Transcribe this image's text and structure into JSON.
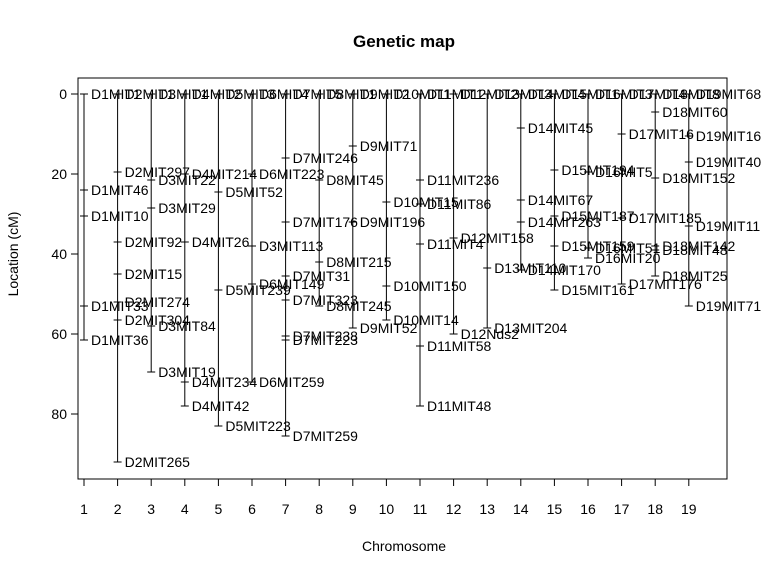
{
  "chart_data": {
    "type": "genetic-map",
    "title": "Genetic map",
    "xlabel": "Chromosome",
    "ylabel": "Location (cM)",
    "ylim": [
      0,
      95
    ],
    "yticks": [
      0,
      20,
      40,
      60,
      80
    ],
    "reversed_y": true,
    "chromosomes": [
      {
        "name": "1",
        "length": 61.5,
        "markers": [
          {
            "name": "D1MIT1",
            "pos": 0
          },
          {
            "name": "D1MIT46",
            "pos": 24
          },
          {
            "name": "D1MIT10",
            "pos": 30.5
          },
          {
            "name": "D1MIT33",
            "pos": 53
          },
          {
            "name": "D1MIT36",
            "pos": 61.5
          }
        ]
      },
      {
        "name": "2",
        "length": 92,
        "markers": [
          {
            "name": "D2MIT1",
            "pos": 0
          },
          {
            "name": "D2MIT297",
            "pos": 19.5
          },
          {
            "name": "D2MIT92",
            "pos": 37
          },
          {
            "name": "D2MIT15",
            "pos": 45
          },
          {
            "name": "D2MIT274",
            "pos": 52
          },
          {
            "name": "D2MIT304",
            "pos": 56.5
          },
          {
            "name": "D2MIT265",
            "pos": 92
          }
        ]
      },
      {
        "name": "3",
        "length": 69.5,
        "markers": [
          {
            "name": "D3MIT1",
            "pos": 0
          },
          {
            "name": "D3MIT22",
            "pos": 21.5
          },
          {
            "name": "D3MIT29",
            "pos": 28.5
          },
          {
            "name": "D3MIT84",
            "pos": 58
          },
          {
            "name": "D3MIT19",
            "pos": 69.5
          }
        ]
      },
      {
        "name": "4",
        "length": 78,
        "markers": [
          {
            "name": "D4MIT2",
            "pos": 0
          },
          {
            "name": "D4MIT214",
            "pos": 20
          },
          {
            "name": "D4MIT26",
            "pos": 37
          },
          {
            "name": "D4MIT234",
            "pos": 72
          },
          {
            "name": "D4MIT42",
            "pos": 78
          }
        ]
      },
      {
        "name": "5",
        "length": 83,
        "markers": [
          {
            "name": "D5MIT3",
            "pos": 0
          },
          {
            "name": "D5MIT52",
            "pos": 24.5
          },
          {
            "name": "D5MIT239",
            "pos": 49
          },
          {
            "name": "D5MIT223",
            "pos": 83
          }
        ]
      },
      {
        "name": "6",
        "length": 72,
        "markers": [
          {
            "name": "D6MIT4",
            "pos": 0
          },
          {
            "name": "D6MIT223",
            "pos": 20
          },
          {
            "name": "D3MIT113",
            "pos": 38
          },
          {
            "name": "D6MIT149",
            "pos": 47.5
          },
          {
            "name": "D6MIT259",
            "pos": 72
          }
        ]
      },
      {
        "name": "7",
        "length": 85.5,
        "markers": [
          {
            "name": "D7MIT5",
            "pos": 0
          },
          {
            "name": "D7MIT246",
            "pos": 16
          },
          {
            "name": "D7MIT176",
            "pos": 32
          },
          {
            "name": "D7MIT31",
            "pos": 45.5
          },
          {
            "name": "D7MIT323",
            "pos": 51.5
          },
          {
            "name": "D7MIT238",
            "pos": 60.5
          },
          {
            "name": "D7MIT223",
            "pos": 61.5
          },
          {
            "name": "D7MIT259",
            "pos": 85.5
          }
        ]
      },
      {
        "name": "8",
        "length": 53,
        "markers": [
          {
            "name": "D8MIT1",
            "pos": 0
          },
          {
            "name": "D8MIT45",
            "pos": 21.5
          },
          {
            "name": "D8MIT215",
            "pos": 42
          },
          {
            "name": "D8MIT245",
            "pos": 53
          }
        ]
      },
      {
        "name": "9",
        "length": 58.5,
        "markers": [
          {
            "name": "D9MIT2",
            "pos": 0
          },
          {
            "name": "D9MIT71",
            "pos": 13
          },
          {
            "name": "D9MIT196",
            "pos": 32
          },
          {
            "name": "D9MIT52",
            "pos": 58.5
          }
        ]
      },
      {
        "name": "10",
        "length": 56.5,
        "markers": [
          {
            "name": "D10MIT1",
            "pos": 0
          },
          {
            "name": "D10MIT15",
            "pos": 27
          },
          {
            "name": "D10MIT150",
            "pos": 48
          },
          {
            "name": "D10MIT14",
            "pos": 56.5
          }
        ]
      },
      {
        "name": "11",
        "length": 78,
        "markers": [
          {
            "name": "D11MIT1",
            "pos": 0
          },
          {
            "name": "D11MIT236",
            "pos": 21.5
          },
          {
            "name": "D11MIT86",
            "pos": 27.5
          },
          {
            "name": "D11MIT4",
            "pos": 37.5
          },
          {
            "name": "D11MIT58",
            "pos": 63
          },
          {
            "name": "D11MIT48",
            "pos": 78
          }
        ]
      },
      {
        "name": "12",
        "length": 60,
        "markers": [
          {
            "name": "D12MIT2",
            "pos": 0
          },
          {
            "name": "D12MIT158",
            "pos": 36
          },
          {
            "name": "D12Nds2",
            "pos": 60
          }
        ]
      },
      {
        "name": "13",
        "length": 58.5,
        "markers": [
          {
            "name": "D13MIT3",
            "pos": 0
          },
          {
            "name": "D13MIT110",
            "pos": 43.5
          },
          {
            "name": "D13MIT204",
            "pos": 58.5
          }
        ]
      },
      {
        "name": "14",
        "length": 44,
        "markers": [
          {
            "name": "D14MIT4",
            "pos": 0
          },
          {
            "name": "D14MIT45",
            "pos": 8.5
          },
          {
            "name": "D14MIT67",
            "pos": 26.5
          },
          {
            "name": "D14MIT263",
            "pos": 32
          },
          {
            "name": "D14MIT170",
            "pos": 44
          }
        ]
      },
      {
        "name": "15",
        "length": 49,
        "markers": [
          {
            "name": "D15MIT1",
            "pos": 0
          },
          {
            "name": "D15MIT194",
            "pos": 19
          },
          {
            "name": "D15MIT187",
            "pos": 30.5
          },
          {
            "name": "D15MIT159",
            "pos": 38
          },
          {
            "name": "D15MIT161",
            "pos": 49
          }
        ]
      },
      {
        "name": "16",
        "length": 41,
        "markers": [
          {
            "name": "D16MIT3",
            "pos": 0
          },
          {
            "name": "D16MIT5",
            "pos": 19.5
          },
          {
            "name": "D16MIT51",
            "pos": 38.5
          },
          {
            "name": "D16MIT20",
            "pos": 41
          }
        ]
      },
      {
        "name": "17",
        "length": 47.5,
        "markers": [
          {
            "name": "D17MIT4",
            "pos": 0
          },
          {
            "name": "D17MIT16",
            "pos": 10
          },
          {
            "name": "D17MIT185",
            "pos": 31
          },
          {
            "name": "D17MIT176",
            "pos": 47.5
          }
        ]
      },
      {
        "name": "18",
        "length": 45.5,
        "markers": [
          {
            "name": "D18MIT8",
            "pos": 0
          },
          {
            "name": "D18MIT60",
            "pos": 4.5
          },
          {
            "name": "D18MIT152",
            "pos": 21
          },
          {
            "name": "D18MIT142",
            "pos": 38
          },
          {
            "name": "D18MIT48",
            "pos": 39
          },
          {
            "name": "D18MIT25",
            "pos": 45.5
          }
        ]
      },
      {
        "name": "19",
        "length": 53,
        "markers": [
          {
            "name": "D19MIT68",
            "pos": 0
          },
          {
            "name": "D19MIT16",
            "pos": 10.5
          },
          {
            "name": "D19MIT40",
            "pos": 17
          },
          {
            "name": "D19MIT11",
            "pos": 33
          },
          {
            "name": "D19MIT71",
            "pos": 53
          }
        ]
      }
    ]
  }
}
